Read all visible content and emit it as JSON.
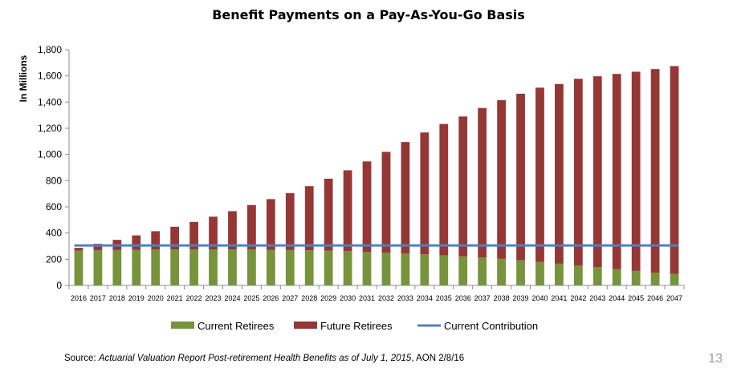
{
  "chart_data": {
    "type": "bar",
    "stacked": true,
    "title": "Benefit Payments on a Pay-As-You-Go Basis",
    "ylabel": "In Millions",
    "xlabel": "",
    "ylim": [
      0,
      1800
    ],
    "yticks": [
      0,
      200,
      400,
      600,
      800,
      1000,
      1200,
      1400,
      1600,
      1800
    ],
    "ytick_labels": [
      "0",
      "200",
      "400",
      "600",
      "800",
      "1,000",
      "1,200",
      "1,400",
      "1,600",
      "1,800"
    ],
    "categories": [
      "2016",
      "2017",
      "2018",
      "2019",
      "2020",
      "2021",
      "2022",
      "2023",
      "2024",
      "2025",
      "2026",
      "2027",
      "2028",
      "2029",
      "2030",
      "2031",
      "2032",
      "2033",
      "2034",
      "2035",
      "2036",
      "2037",
      "2038",
      "2039",
      "2040",
      "2041",
      "2042",
      "2043",
      "2044",
      "2045",
      "2046",
      "2047"
    ],
    "series": [
      {
        "name": "Current Retirees",
        "color": "#77933c",
        "values": [
          265,
          268,
          270,
          272,
          274,
          275,
          275,
          275,
          275,
          274,
          272,
          270,
          268,
          265,
          262,
          257,
          250,
          245,
          238,
          230,
          222,
          213,
          203,
          192,
          180,
          166,
          153,
          139,
          125,
          111,
          98,
          88
        ]
      },
      {
        "name": "Future Retirees",
        "color": "#953735",
        "values": [
          22,
          50,
          78,
          110,
          140,
          173,
          210,
          250,
          292,
          340,
          387,
          435,
          490,
          550,
          617,
          690,
          770,
          850,
          930,
          1003,
          1068,
          1142,
          1212,
          1272,
          1330,
          1372,
          1425,
          1458,
          1490,
          1521,
          1554,
          1587
        ]
      }
    ],
    "lines": [
      {
        "name": "Current Contribution",
        "color": "#4f81bd",
        "value": 305
      }
    ],
    "grid": false,
    "legend": "bottom"
  },
  "source": {
    "prefix": "Source: ",
    "title": "Actuarial Valuation Report Post-retirement Health Benefits as of July 1, 2015",
    "suffix": ", AON  2/8/16"
  },
  "page_number": "13"
}
